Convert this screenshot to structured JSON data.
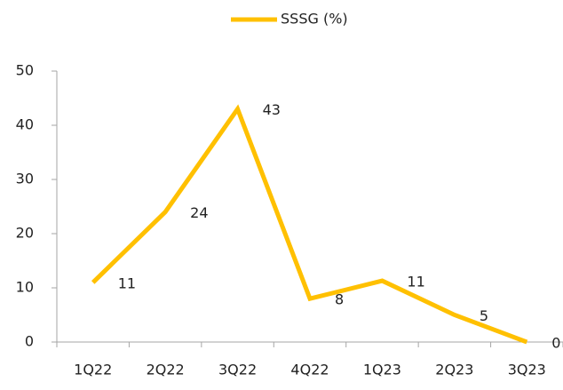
{
  "chart_data": {
    "type": "line",
    "categories": [
      "1Q22",
      "2Q22",
      "3Q22",
      "4Q22",
      "1Q23",
      "2Q23",
      "3Q23"
    ],
    "series": [
      {
        "name": "SSSG (%)",
        "color": "#ffc000",
        "values": [
          11,
          24,
          43,
          8,
          11.3,
          5,
          0
        ],
        "value_labels": [
          "11",
          "24",
          "43",
          "8",
          "11",
          "5",
          "0"
        ]
      }
    ],
    "ylim": [
      0,
      50
    ],
    "yticks": [
      0,
      10,
      20,
      30,
      40,
      50
    ],
    "legend": "top"
  }
}
